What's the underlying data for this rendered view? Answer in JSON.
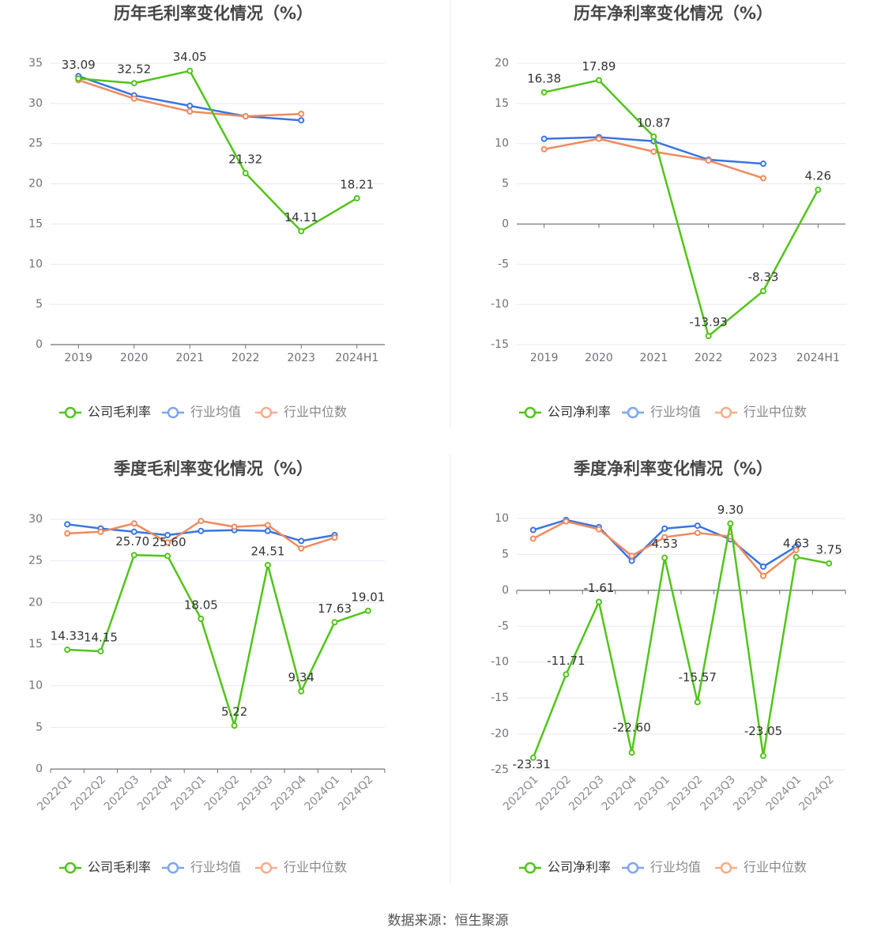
{
  "footer": {
    "source": "数据来源：恒生聚源"
  },
  "colors": {
    "company": "#52c41a",
    "avg": "#3a75e0",
    "median": "#f08a5d",
    "grid": "#e6e9f2",
    "axis": "#6e7079",
    "label": "#333333"
  },
  "chart_data": [
    {
      "type": "line",
      "title": "历年毛利率变化情况（%）",
      "categories": [
        "2019",
        "2020",
        "2021",
        "2022",
        "2023",
        "2024H1"
      ],
      "ylim": [
        0,
        35
      ],
      "yticks": [
        0,
        5,
        10,
        15,
        20,
        25,
        30,
        35
      ],
      "grid": true,
      "legend_position": "bottom",
      "series": [
        {
          "name": "公司毛利率",
          "color": "#52c41a",
          "values": [
            33.09,
            32.52,
            34.05,
            21.32,
            14.11,
            18.21
          ],
          "labels": [
            "33.09",
            "32.52",
            "34.05",
            "21.32",
            "14.11",
            "18.21"
          ]
        },
        {
          "name": "行业均值",
          "color": "#3a75e0",
          "values": [
            33.4,
            31.0,
            29.7,
            28.4,
            27.9,
            null
          ]
        },
        {
          "name": "行业中位数",
          "color": "#f08a5d",
          "values": [
            32.9,
            30.6,
            29.0,
            28.4,
            28.7,
            null
          ]
        }
      ]
    },
    {
      "type": "line",
      "title": "历年净利率变化情况（%）",
      "categories": [
        "2019",
        "2020",
        "2021",
        "2022",
        "2023",
        "2024H1"
      ],
      "ylim": [
        -15,
        20
      ],
      "yticks": [
        -15,
        -10,
        -5,
        0,
        5,
        10,
        15,
        20
      ],
      "grid": true,
      "legend_position": "bottom",
      "series": [
        {
          "name": "公司净利率",
          "color": "#52c41a",
          "values": [
            16.38,
            17.89,
            10.87,
            -13.93,
            -8.33,
            4.26
          ],
          "labels": [
            "16.38",
            "17.89",
            "10.87",
            "-13.93",
            "-8.33",
            "4.26"
          ]
        },
        {
          "name": "行业均值",
          "color": "#3a75e0",
          "values": [
            10.6,
            10.8,
            10.3,
            8.0,
            7.5,
            null
          ]
        },
        {
          "name": "行业中位数",
          "color": "#f08a5d",
          "values": [
            9.3,
            10.6,
            9.0,
            7.9,
            5.7,
            null
          ]
        }
      ]
    },
    {
      "type": "line",
      "title": "季度毛利率变化情况（%）",
      "categories": [
        "2022Q1",
        "2022Q2",
        "2022Q3",
        "2022Q4",
        "2023Q1",
        "2023Q2",
        "2023Q3",
        "2023Q4",
        "2024Q1",
        "2024Q2"
      ],
      "ylim": [
        0,
        30
      ],
      "yticks": [
        0,
        5,
        10,
        15,
        20,
        25,
        30
      ],
      "grid": true,
      "legend_position": "bottom",
      "rotated_x_labels": true,
      "series": [
        {
          "name": "公司毛利率",
          "color": "#52c41a",
          "values": [
            14.33,
            14.15,
            25.7,
            25.6,
            18.05,
            5.22,
            24.51,
            9.34,
            17.63,
            19.01
          ],
          "labels": [
            "14.33",
            "14.15",
            "25.70",
            "25.60",
            "18.05",
            "5.22",
            "24.51",
            "9.34",
            "17.63",
            "19.01"
          ]
        },
        {
          "name": "行业均值",
          "color": "#3a75e0",
          "values": [
            29.4,
            28.9,
            28.5,
            28.1,
            28.6,
            28.7,
            28.6,
            27.4,
            28.1,
            null
          ]
        },
        {
          "name": "行业中位数",
          "color": "#f08a5d",
          "values": [
            28.3,
            28.5,
            29.5,
            27.2,
            29.8,
            29.1,
            29.3,
            26.5,
            27.8,
            null
          ]
        }
      ]
    },
    {
      "type": "line",
      "title": "季度净利率变化情况（%）",
      "categories": [
        "2022Q1",
        "2022Q2",
        "2022Q3",
        "2022Q4",
        "2023Q1",
        "2023Q2",
        "2023Q3",
        "2023Q4",
        "2024Q1",
        "2024Q2"
      ],
      "ylim": [
        -25,
        10
      ],
      "yticks": [
        -25,
        -20,
        -15,
        -10,
        -5,
        0,
        5,
        10
      ],
      "grid": true,
      "legend_position": "bottom",
      "rotated_x_labels": true,
      "series": [
        {
          "name": "公司净利率",
          "color": "#52c41a",
          "values": [
            -23.31,
            -11.71,
            -1.61,
            -22.6,
            4.53,
            -15.57,
            9.3,
            -23.05,
            4.63,
            3.75
          ],
          "labels": [
            "-23.31",
            "-11.71",
            "-1.61",
            "-22.60",
            "4.53",
            "-15.57",
            "9.30",
            "-23.05",
            "4.63",
            "3.75"
          ]
        },
        {
          "name": "行业均值",
          "color": "#3a75e0",
          "values": [
            8.4,
            9.8,
            8.8,
            4.1,
            8.6,
            9.0,
            7.1,
            3.3,
            6.1,
            null
          ]
        },
        {
          "name": "行业中位数",
          "color": "#f08a5d",
          "values": [
            7.2,
            9.6,
            8.5,
            4.8,
            7.4,
            8.0,
            7.5,
            2.0,
            5.6,
            null
          ]
        }
      ]
    }
  ]
}
